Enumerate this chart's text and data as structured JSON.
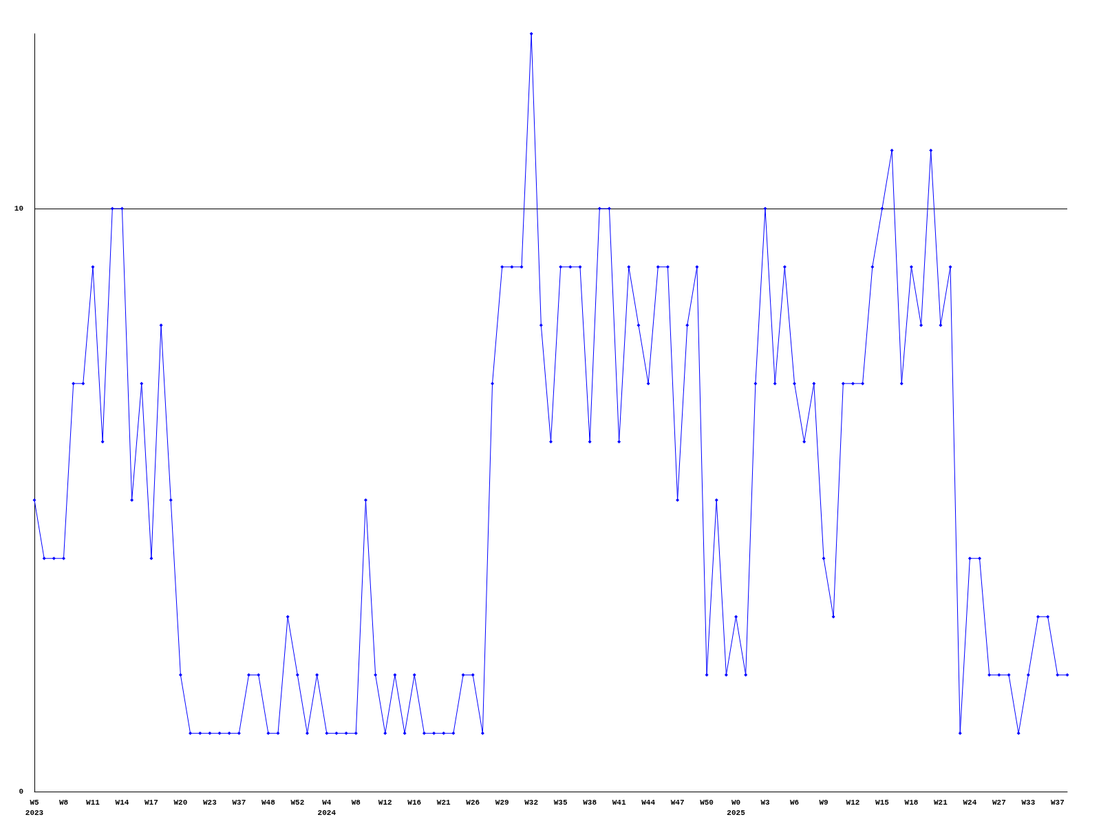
{
  "chart_data": {
    "type": "line",
    "categories": [
      "W5\n2023",
      null,
      null,
      "W8",
      null,
      null,
      "W11",
      null,
      null,
      "W14",
      null,
      null,
      "W17",
      null,
      null,
      "W20",
      null,
      null,
      "W23",
      null,
      null,
      "W37",
      null,
      null,
      "W48",
      null,
      null,
      "W52",
      null,
      null,
      "W4\n2024",
      null,
      null,
      "W8",
      null,
      null,
      "W12",
      null,
      null,
      "W16",
      null,
      null,
      "W21",
      null,
      null,
      "W26",
      null,
      null,
      "W29",
      null,
      null,
      "W32",
      null,
      null,
      "W35",
      null,
      null,
      "W38",
      null,
      null,
      "W41",
      null,
      null,
      "W44",
      null,
      null,
      "W47",
      null,
      null,
      "W50",
      null,
      null,
      "W0\n2025",
      null,
      null,
      "W3",
      null,
      null,
      "W6",
      null,
      null,
      "W9",
      null,
      null,
      "W12",
      null,
      null,
      "W15",
      null,
      null,
      "W18",
      null,
      null,
      "W21",
      null,
      null,
      "W24",
      null,
      null,
      "W27",
      null,
      null,
      "W33",
      null,
      null,
      "W37",
      null
    ],
    "series": [
      {
        "color": "#0000ff",
        "values": [
          5,
          4,
          4,
          4,
          7,
          7,
          9,
          6,
          10,
          10,
          5,
          7,
          4,
          8,
          5,
          2,
          1,
          1,
          1,
          1,
          1,
          1,
          2,
          2,
          1,
          1,
          3,
          2,
          1,
          2,
          1,
          1,
          1,
          1,
          5,
          2,
          1,
          2,
          1,
          2,
          1,
          1,
          1,
          1,
          2,
          2,
          1,
          7,
          9,
          9,
          9,
          13,
          8,
          6,
          9,
          9,
          9,
          6,
          10,
          10,
          6,
          9,
          8,
          7,
          9,
          9,
          5,
          8,
          9,
          2,
          5,
          2,
          3,
          2,
          7,
          10,
          7,
          9,
          7,
          6,
          7,
          4,
          3,
          7,
          7,
          7,
          9,
          10,
          11,
          7,
          9,
          8,
          11,
          8,
          9,
          1,
          4,
          4,
          2,
          2,
          2,
          1,
          2,
          3,
          3,
          2,
          2
        ]
      }
    ],
    "ylim": [
      0,
      13
    ],
    "yticks": [
      0,
      10
    ],
    "grid": "y",
    "marker": "diamond",
    "line_style": "solid"
  }
}
